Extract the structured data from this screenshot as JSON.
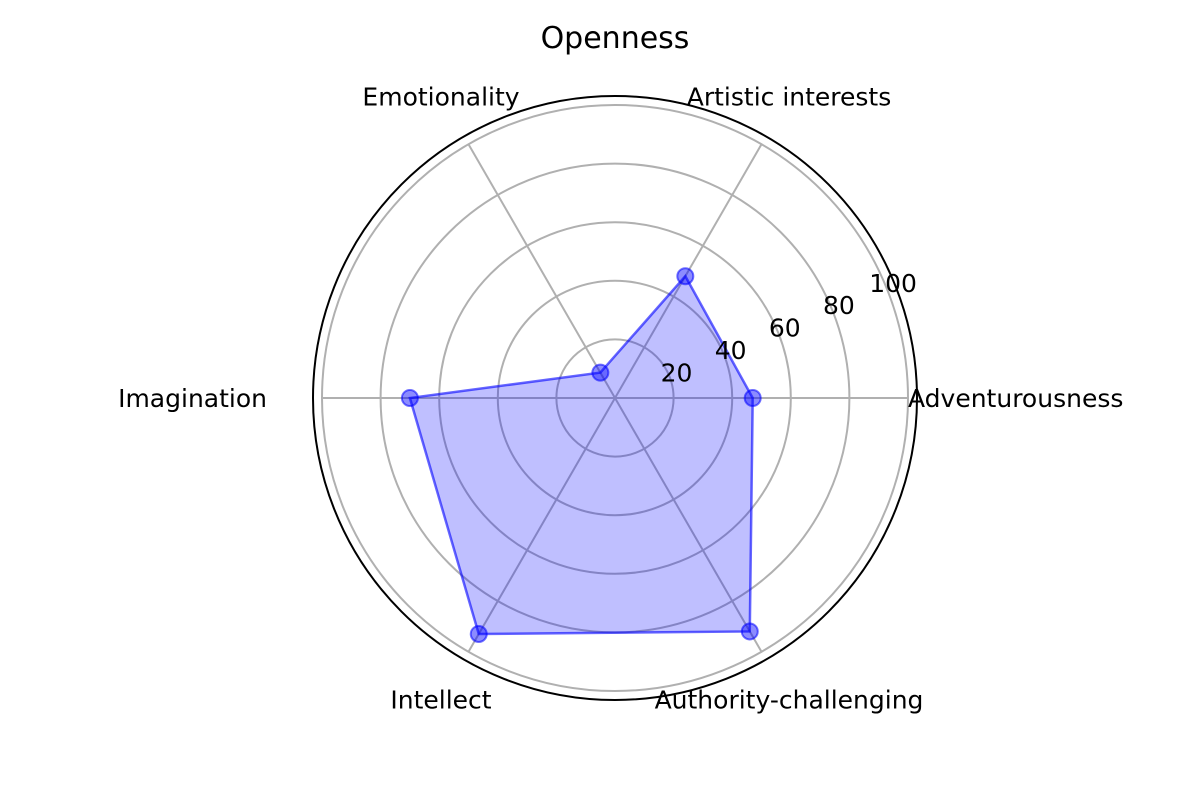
{
  "chart_data": {
    "type": "radar",
    "title": "Openness",
    "categories": [
      "Adventurousness",
      "Artistic interests",
      "Emotionality",
      "Imagination",
      "Intellect",
      "Authority-challenging"
    ],
    "series": [
      {
        "values": [
          47,
          48,
          10,
          70,
          93,
          92
        ]
      }
    ],
    "rlim": [
      0,
      100
    ],
    "r_ticks": [
      20,
      40,
      60,
      80,
      100
    ],
    "grid": true,
    "colors": {
      "line": "#0000ff",
      "fill": "#0000ff",
      "grid": "#b0b0b0",
      "frame": "#000000"
    }
  }
}
